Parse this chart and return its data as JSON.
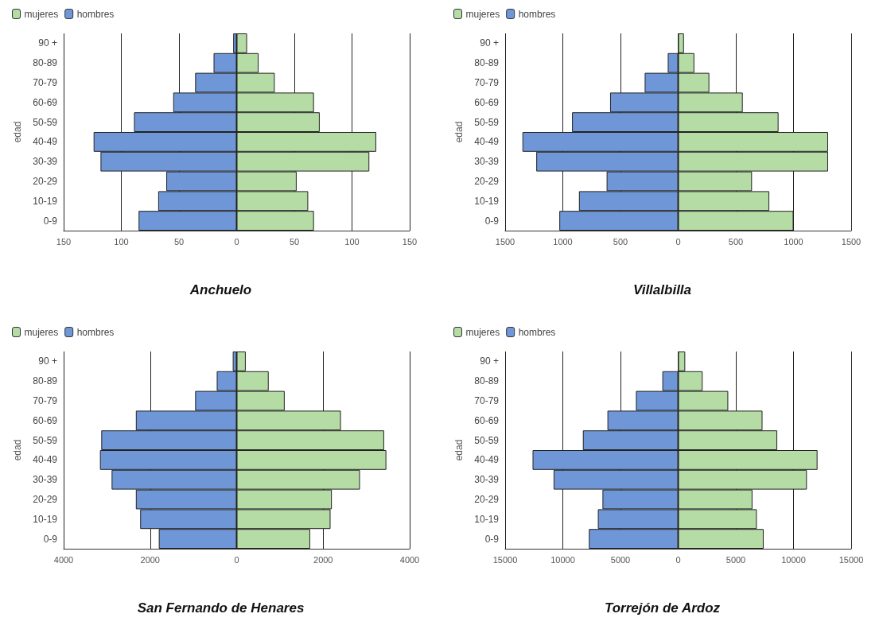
{
  "chart_data": [
    {
      "type": "bar",
      "title": "Anchuelo",
      "ylabel": "edad",
      "orientation": "horizontal",
      "stacked": true,
      "grid": "x",
      "legend": "top left",
      "categories": [
        "90 +",
        "80-89",
        "70-79",
        "60-69",
        "50-59",
        "40-49",
        "30-39",
        "20-29",
        "10-19",
        "0-9"
      ],
      "series": [
        {
          "name": "mujeres",
          "color": "#b5dca5",
          "values": [
            9,
            19,
            33,
            67,
            72,
            121,
            115,
            52,
            62,
            67
          ]
        },
        {
          "name": "hombres",
          "color": "#6f97d8",
          "values": [
            -3,
            -20,
            -36,
            -55,
            -89,
            -124,
            -118,
            -61,
            -68,
            -85
          ]
        }
      ],
      "xlim": [
        -150,
        150
      ],
      "xticks": [
        {
          "value": -150,
          "label": "150"
        },
        {
          "value": -100,
          "label": "100"
        },
        {
          "value": -50,
          "label": "50"
        },
        0,
        50,
        100,
        150
      ]
    },
    {
      "type": "bar",
      "title": "Villalbilla",
      "ylabel": "edad",
      "orientation": "horizontal",
      "stacked": true,
      "grid": "x",
      "legend": "top left",
      "categories": [
        "90 +",
        "80-89",
        "70-79",
        "60-69",
        "50-59",
        "40-49",
        "30-39",
        "20-29",
        "10-19",
        "0-9"
      ],
      "series": [
        {
          "name": "mujeres",
          "color": "#b5dca5",
          "values": [
            50,
            140,
            270,
            560,
            870,
            1300,
            1300,
            640,
            790,
            1000
          ]
        },
        {
          "name": "hombres",
          "color": "#6f97d8",
          "values": [
            null,
            -90,
            -290,
            -590,
            -920,
            -1350,
            -1230,
            -620,
            -860,
            -1030
          ]
        }
      ],
      "xlim": [
        -1500,
        1500
      ],
      "xticks": [
        {
          "value": -1500,
          "label": "1500"
        },
        {
          "value": -1000,
          "label": "1000"
        },
        {
          "value": -500,
          "label": "500"
        },
        0,
        500,
        1000,
        1500
      ]
    },
    {
      "type": "bar",
      "title": "San Fernando de Henares",
      "ylabel": "edad",
      "orientation": "horizontal",
      "stacked": true,
      "grid": "x",
      "legend": "top left",
      "categories": [
        "90 +",
        "80-89",
        "70-79",
        "60-69",
        "50-59",
        "40-49",
        "30-39",
        "20-29",
        "10-19",
        "0-9"
      ],
      "series": [
        {
          "name": "mujeres",
          "color": "#b5dca5",
          "values": [
            210,
            740,
            1110,
            2410,
            3410,
            3460,
            2850,
            2200,
            2170,
            1700
          ]
        },
        {
          "name": "hombres",
          "color": "#6f97d8",
          "values": [
            -90,
            -460,
            -960,
            -2330,
            -3130,
            -3160,
            -2890,
            -2330,
            -2230,
            -1800
          ]
        }
      ],
      "xlim": [
        -4000,
        4000
      ],
      "xticks": [
        {
          "value": -4000,
          "label": "4000"
        },
        {
          "value": -2000,
          "label": "2000"
        },
        0,
        2000,
        4000
      ]
    },
    {
      "type": "bar",
      "title": "Torrejón de Ardoz",
      "ylabel": "edad",
      "orientation": "horizontal",
      "stacked": true,
      "grid": "x",
      "legend": "top left",
      "categories": [
        "90 +",
        "80-89",
        "70-79",
        "60-69",
        "50-59",
        "40-49",
        "30-39",
        "20-29",
        "10-19",
        "0-9"
      ],
      "series": [
        {
          "name": "mujeres",
          "color": "#b5dca5",
          "values": [
            610,
            2120,
            4340,
            7310,
            8590,
            12080,
            11160,
            6440,
            6820,
            7410
          ]
        },
        {
          "name": "hombres",
          "color": "#6f97d8",
          "values": [
            null,
            -1370,
            -3660,
            -6130,
            -8260,
            -12620,
            -10800,
            -6560,
            -6960,
            -7740
          ]
        }
      ],
      "xlim": [
        -15000,
        15000
      ],
      "xticks": [
        {
          "value": -15000,
          "label": "15000"
        },
        {
          "value": -10000,
          "label": "10000"
        },
        {
          "value": -5000,
          "label": "5000"
        },
        0,
        5000,
        10000,
        15000
      ]
    }
  ]
}
